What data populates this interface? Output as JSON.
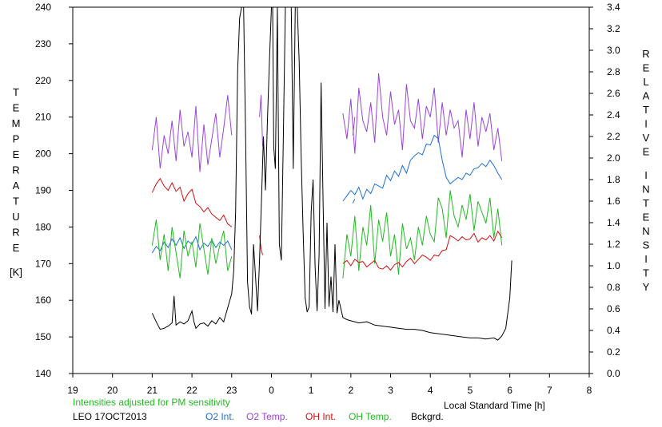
{
  "chart_data": {
    "type": "line",
    "title": "",
    "site_date": "LEO 17OCT2013",
    "note": "Intensities adjusted for PM sensitivity",
    "note_color": "#22bb22",
    "xlabel": "Local Standard Time [h]",
    "ylabel_left_letters": [
      "T",
      "E",
      "M",
      "P",
      "E",
      "R",
      "A",
      "T",
      "U",
      "R",
      "E",
      "",
      "[K]"
    ],
    "ylabel_right_letters": [
      "R",
      "E",
      "L",
      "A",
      "T",
      "I",
      "V",
      "E",
      "",
      "I",
      "N",
      "T",
      "E",
      "N",
      "S",
      "I",
      "T",
      "Y"
    ],
    "x_ticks": [
      "19",
      "20",
      "21",
      "22",
      "23",
      "0",
      "1",
      "2",
      "3",
      "4",
      "5",
      "6",
      "7",
      "8"
    ],
    "x_range_hours": [
      19,
      32
    ],
    "y_left_range": [
      140,
      240
    ],
    "y_left_ticks": [
      140,
      150,
      160,
      170,
      180,
      190,
      200,
      210,
      220,
      230,
      240
    ],
    "y_right_range": [
      0.0,
      3.4
    ],
    "y_right_ticks": [
      "0.0",
      "0.2",
      "0.4",
      "0.6",
      "0.8",
      "1.0",
      "1.2",
      "1.4",
      "1.6",
      "1.8",
      "2.0",
      "2.2",
      "2.4",
      "2.6",
      "2.8",
      "3.0",
      "3.2",
      "3.4"
    ],
    "grid": false,
    "legend": [
      {
        "name": "O2 Int.",
        "color": "#1f6fd6"
      },
      {
        "name": "O2 Temp.",
        "color": "#9a45d6"
      },
      {
        "name": "OH Int.",
        "color": "#d01010"
      },
      {
        "name": "OH Temp.",
        "color": "#22bb22"
      },
      {
        "name": "Bckgrd.",
        "color": "#000000"
      }
    ],
    "series": [
      {
        "name": "O2 Temp.",
        "axis": "left",
        "color": "#9a45d6",
        "x": [
          21.0,
          21.1,
          21.2,
          21.3,
          21.4,
          21.5,
          21.6,
          21.7,
          21.8,
          21.9,
          22.0,
          22.1,
          22.2,
          22.3,
          22.4,
          22.5,
          22.6,
          22.7,
          22.8,
          22.9,
          23.0
        ],
        "y": [
          201,
          210,
          196,
          205,
          200,
          209,
          198,
          212,
          202,
          206,
          199,
          213,
          195,
          208,
          197,
          204,
          211,
          199,
          207,
          216,
          205
        ]
      },
      {
        "name": "O2 Temp.",
        "axis": "left",
        "color": "#9a45d6",
        "x": [
          23.7,
          23.74,
          23.78
        ],
        "y": [
          210,
          216,
          202
        ]
      },
      {
        "name": "O2 Temp.",
        "axis": "left",
        "color": "#9a45d6",
        "x": [
          26.05,
          26.1
        ],
        "y": [
          205,
          210
        ]
      },
      {
        "name": "O2 Temp.",
        "axis": "left",
        "color": "#9a45d6",
        "x": [
          25.8,
          25.9,
          26.0,
          26.1,
          26.2,
          26.3,
          26.4,
          26.5,
          26.6,
          26.7,
          26.8,
          26.9,
          27.0,
          27.1,
          27.2,
          27.3,
          27.4,
          27.5,
          27.6,
          27.7,
          27.8,
          27.9,
          28.0,
          28.1,
          28.2,
          28.3,
          28.4,
          28.5,
          28.6,
          28.7,
          28.8,
          28.9,
          29.0,
          29.1,
          29.2,
          29.3,
          29.4,
          29.5,
          29.6,
          29.7,
          29.8
        ],
        "y": [
          211,
          204,
          215,
          200,
          218,
          209,
          206,
          214,
          203,
          222,
          210,
          205,
          217,
          208,
          212,
          201,
          219,
          209,
          207,
          215,
          204,
          213,
          210,
          218,
          203,
          214,
          205,
          212,
          207,
          209,
          199,
          212,
          204,
          214,
          202,
          210,
          206,
          211,
          201,
          207,
          198
        ]
      },
      {
        "name": "O2 Int.",
        "axis": "right",
        "color": "#1f6fd6",
        "x": [
          21.0,
          21.1,
          21.2,
          21.3,
          21.4,
          21.5,
          21.6,
          21.7,
          21.8,
          21.9,
          22.0,
          22.1,
          22.2,
          22.3,
          22.4,
          22.5,
          22.6,
          22.7,
          22.8,
          22.9,
          23.0
        ],
        "y": [
          1.12,
          1.18,
          1.14,
          1.22,
          1.17,
          1.25,
          1.19,
          1.26,
          1.16,
          1.23,
          1.2,
          1.27,
          1.15,
          1.21,
          1.18,
          1.24,
          1.17,
          1.22,
          1.19,
          1.23,
          1.15
        ]
      },
      {
        "name": "O2 Int.",
        "axis": "right",
        "color": "#1f6fd6",
        "x": [
          26.05,
          26.1
        ],
        "y": [
          1.58,
          1.62
        ]
      },
      {
        "name": "O2 Int.",
        "axis": "right",
        "color": "#1f6fd6",
        "x": [
          25.8,
          25.9,
          26.0,
          26.1,
          26.2,
          26.3,
          26.4,
          26.5,
          26.6,
          26.7,
          26.8,
          26.9,
          27.0,
          27.1,
          27.2,
          27.3,
          27.4,
          27.5,
          27.6,
          27.7,
          27.8,
          27.9,
          28.0,
          28.1,
          28.2,
          28.3,
          28.4,
          28.5,
          28.6,
          28.7,
          28.8,
          28.9,
          29.0,
          29.1,
          29.2,
          29.3,
          29.4,
          29.5,
          29.6,
          29.7,
          29.8
        ],
        "y": [
          1.6,
          1.65,
          1.7,
          1.66,
          1.73,
          1.62,
          1.71,
          1.67,
          1.76,
          1.74,
          1.72,
          1.84,
          1.79,
          1.88,
          1.83,
          1.93,
          1.86,
          1.98,
          2.02,
          2.05,
          2.03,
          2.13,
          2.12,
          2.21,
          2.18,
          1.98,
          1.82,
          1.76,
          1.79,
          1.82,
          1.8,
          1.86,
          1.84,
          1.9,
          1.91,
          1.95,
          1.92,
          1.98,
          1.93,
          1.86,
          1.8
        ]
      },
      {
        "name": "OH Temp.",
        "axis": "left",
        "color": "#22bb22",
        "x": [
          21.0,
          21.1,
          21.2,
          21.3,
          21.4,
          21.5,
          21.6,
          21.7,
          21.8,
          21.9,
          22.0,
          22.1,
          22.2,
          22.3,
          22.4,
          22.5,
          22.6,
          22.7,
          22.8,
          22.9,
          23.0
        ],
        "y": [
          175,
          182,
          171,
          178,
          168,
          180,
          173,
          166,
          179,
          172,
          176,
          169,
          181,
          174,
          167,
          177,
          170,
          175,
          179,
          168,
          172
        ]
      },
      {
        "name": "OH Temp.",
        "axis": "left",
        "color": "#22bb22",
        "x": [
          25.8,
          25.9,
          26.0,
          26.1,
          26.2,
          26.3,
          26.4,
          26.5,
          26.6,
          26.7,
          26.8,
          26.9,
          27.0,
          27.1,
          27.2,
          27.3,
          27.4,
          27.5,
          27.6,
          27.7,
          27.8,
          27.9,
          28.0,
          28.1,
          28.2,
          28.3,
          28.4,
          28.5,
          28.6,
          28.7,
          28.8,
          28.9,
          29.0,
          29.1,
          29.2,
          29.3,
          29.4,
          29.5,
          29.6,
          29.7,
          29.8
        ],
        "y": [
          166,
          178,
          172,
          183,
          168,
          180,
          175,
          186,
          170,
          182,
          176,
          184,
          172,
          178,
          167,
          181,
          174,
          177,
          171,
          180,
          175,
          183,
          178,
          176,
          188,
          185,
          177,
          190,
          183,
          180,
          186,
          182,
          189,
          179,
          187,
          184,
          181,
          188,
          177,
          185,
          175
        ]
      },
      {
        "name": "OH Int.",
        "axis": "right",
        "color": "#d01010",
        "x": [
          21.0,
          21.1,
          21.2,
          21.3,
          21.4,
          21.5,
          21.6,
          21.7,
          21.8,
          21.9,
          22.0,
          22.1,
          22.2,
          22.3,
          22.4,
          22.5,
          22.6,
          22.7,
          22.8,
          22.9,
          23.0
        ],
        "y": [
          1.68,
          1.76,
          1.81,
          1.74,
          1.7,
          1.77,
          1.69,
          1.73,
          1.6,
          1.67,
          1.71,
          1.58,
          1.55,
          1.5,
          1.54,
          1.48,
          1.45,
          1.42,
          1.47,
          1.39,
          1.36
        ]
      },
      {
        "name": "OH Int.",
        "axis": "right",
        "color": "#d01010",
        "x": [
          23.7,
          23.74,
          23.78
        ],
        "y": [
          1.28,
          1.16,
          1.1
        ]
      },
      {
        "name": "OH Int.",
        "axis": "right",
        "color": "#d01010",
        "x": [
          25.8,
          25.9,
          26.0,
          26.1,
          26.2,
          26.3,
          26.4,
          26.5,
          26.6,
          26.7,
          26.8,
          26.9,
          27.0,
          27.1,
          27.2,
          27.3,
          27.4,
          27.5,
          27.6,
          27.7,
          27.8,
          27.9,
          28.0,
          28.1,
          28.2,
          28.3,
          28.4,
          28.5,
          28.6,
          28.7,
          28.8,
          28.9,
          29.0,
          29.1,
          29.2,
          29.3,
          29.4,
          29.5,
          29.6,
          29.7,
          29.8
        ],
        "y": [
          1.02,
          1.05,
          1.0,
          1.06,
          1.03,
          1.04,
          0.99,
          1.02,
          1.05,
          0.98,
          0.97,
          1.0,
          0.96,
          1.01,
          1.03,
          0.99,
          1.04,
          1.07,
          1.02,
          1.06,
          1.1,
          1.08,
          1.05,
          1.1,
          1.09,
          1.14,
          1.15,
          1.28,
          1.26,
          1.23,
          1.27,
          1.24,
          1.25,
          1.3,
          1.22,
          1.26,
          1.24,
          1.28,
          1.23,
          1.32,
          1.26
        ]
      },
      {
        "name": "Bckgrd.",
        "axis": "right",
        "color": "#000000",
        "x": [
          21.0,
          21.1,
          21.2,
          21.3,
          21.4,
          21.5,
          21.55,
          21.6,
          21.7,
          21.8,
          21.9,
          22.0,
          22.05,
          22.1,
          22.2,
          22.3,
          22.4,
          22.5,
          22.6,
          22.7,
          22.8,
          22.9,
          23.0,
          23.05,
          23.1,
          23.15,
          23.2,
          23.25,
          23.3,
          23.35,
          23.4,
          23.45,
          23.5,
          23.55,
          23.6,
          23.65,
          23.7,
          23.75,
          23.8,
          23.85,
          23.9,
          23.95,
          24.0,
          24.03,
          24.06,
          24.1,
          24.15,
          24.2,
          24.25,
          24.3,
          24.35,
          24.4,
          24.45,
          24.5,
          24.55,
          24.6,
          24.65,
          24.7,
          24.75,
          24.8,
          24.85,
          24.9,
          24.95,
          25.0,
          25.05,
          25.1,
          25.15,
          25.2,
          25.25,
          25.3,
          25.35,
          25.4,
          25.45,
          25.5,
          25.55,
          25.6,
          25.65,
          25.7,
          25.8,
          25.9,
          26.0,
          26.2,
          26.4,
          26.6,
          26.8,
          27.0,
          27.2,
          27.4,
          27.6,
          27.8,
          28.0,
          28.2,
          28.4,
          28.6,
          28.8,
          29.0,
          29.2,
          29.4,
          29.6,
          29.7,
          29.8,
          29.9,
          30.0,
          30.05
        ],
        "y": [
          0.56,
          0.48,
          0.41,
          0.42,
          0.44,
          0.47,
          0.72,
          0.45,
          0.48,
          0.46,
          0.49,
          0.58,
          0.48,
          0.42,
          0.46,
          0.47,
          0.44,
          0.49,
          0.46,
          0.52,
          0.48,
          0.61,
          0.74,
          0.95,
          1.5,
          2.8,
          3.3,
          3.4,
          3.4,
          2.2,
          0.85,
          0.62,
          0.55,
          1.2,
          0.9,
          0.58,
          1.05,
          1.6,
          2.2,
          1.7,
          2.35,
          2.9,
          3.4,
          3.4,
          2.1,
          1.9,
          3.4,
          1.2,
          1.05,
          2.2,
          3.4,
          3.4,
          3.4,
          3.4,
          1.9,
          3.4,
          3.4,
          2.9,
          2.0,
          1.3,
          0.7,
          0.57,
          0.62,
          1.5,
          1.8,
          1.0,
          0.58,
          1.1,
          2.7,
          1.6,
          0.6,
          1.4,
          0.62,
          0.9,
          0.57,
          1.2,
          0.56,
          0.68,
          0.52,
          0.5,
          0.49,
          0.47,
          0.48,
          0.45,
          0.44,
          0.43,
          0.42,
          0.41,
          0.41,
          0.4,
          0.38,
          0.37,
          0.36,
          0.35,
          0.34,
          0.33,
          0.33,
          0.32,
          0.33,
          0.31,
          0.35,
          0.42,
          0.7,
          1.05
        ]
      }
    ]
  }
}
